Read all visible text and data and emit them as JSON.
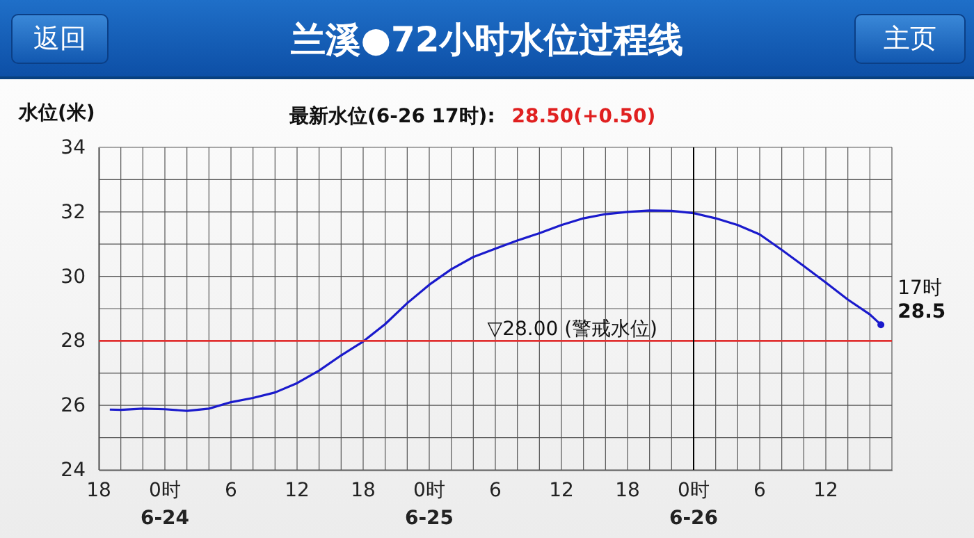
{
  "chart_data": {
    "type": "line",
    "title": "兰溪●72小时水位过程线",
    "subtitle": "最新水位(6-26 17时):",
    "ylabel": "水位(米)",
    "x": [
      "--06-23T19:00",
      "--06-23T20:00",
      "--06-23T22:00",
      "--06-24T00:00",
      "--06-24T02:00",
      "--06-24T04:00",
      "--06-24T06:00",
      "--06-24T08:00",
      "--06-24T10:00",
      "--06-24T12:00",
      "--06-24T14:00",
      "--06-24T16:00",
      "--06-24T18:00",
      "--06-24T20:00",
      "--06-24T22:00",
      "--06-25T00:00",
      "--06-25T02:00",
      "--06-25T04:00",
      "--06-25T06:00",
      "--06-25T08:00",
      "--06-25T10:00",
      "--06-25T12:00",
      "--06-25T14:00",
      "--06-25T16:00",
      "--06-25T18:00",
      "--06-25T20:00",
      "--06-25T22:00",
      "--06-26T00:00",
      "--06-26T02:00",
      "--06-26T04:00",
      "--06-26T06:00",
      "--06-26T08:00",
      "--06-26T10:00",
      "--06-26T12:00",
      "--06-26T14:00",
      "--06-26T16:00",
      "--06-26T17:00"
    ],
    "series": [
      {
        "color": "#1a1acc",
        "values": [
          25.87,
          25.86,
          25.9,
          25.88,
          25.83,
          25.9,
          26.1,
          26.23,
          26.4,
          26.69,
          27.08,
          27.55,
          27.98,
          28.52,
          29.17,
          29.74,
          30.22,
          30.6,
          30.86,
          31.11,
          31.34,
          31.59,
          31.8,
          31.93,
          32.0,
          32.04,
          32.03,
          31.96,
          31.8,
          31.59,
          31.3,
          30.82,
          30.32,
          29.81,
          29.28,
          28.82,
          28.5
        ]
      }
    ],
    "xlim": [
      "--06-23T18:00",
      "--06-26T18:00"
    ],
    "xticks": [
      {
        "value": "--06-23T18:00",
        "label": "18"
      },
      {
        "value": "--06-23T20:00",
        "label": null
      },
      {
        "value": "--06-23T22:00",
        "label": null
      },
      {
        "value": "--06-24T00:00",
        "label": "0时\n6-24"
      },
      {
        "value": "--06-24T02:00",
        "label": null
      },
      {
        "value": "--06-24T04:00",
        "label": null
      },
      {
        "value": "--06-24T06:00",
        "label": "6"
      },
      {
        "value": "--06-24T08:00",
        "label": null
      },
      {
        "value": "--06-24T10:00",
        "label": null
      },
      {
        "value": "--06-24T12:00",
        "label": "12"
      },
      {
        "value": "--06-24T14:00",
        "label": null
      },
      {
        "value": "--06-24T16:00",
        "label": null
      },
      {
        "value": "--06-24T18:00",
        "label": "18"
      },
      {
        "value": "--06-24T20:00",
        "label": null
      },
      {
        "value": "--06-24T22:00",
        "label": null
      },
      {
        "value": "--06-25T00:00",
        "label": "0时\n6-25"
      },
      {
        "value": "--06-25T02:00",
        "label": null
      },
      {
        "value": "--06-25T04:00",
        "label": null
      },
      {
        "value": "--06-25T06:00",
        "label": "6"
      },
      {
        "value": "--06-25T08:00",
        "label": null
      },
      {
        "value": "--06-25T10:00",
        "label": null
      },
      {
        "value": "--06-25T12:00",
        "label": "12"
      },
      {
        "value": "--06-25T14:00",
        "label": null
      },
      {
        "value": "--06-25T16:00",
        "label": null
      },
      {
        "value": "--06-25T18:00",
        "label": "18"
      },
      {
        "value": "--06-25T20:00",
        "label": null
      },
      {
        "value": "--06-25T22:00",
        "label": null
      },
      {
        "value": "--06-26T00:00",
        "label": "0时\n6-26"
      },
      {
        "value": "--06-26T02:00",
        "label": null
      },
      {
        "value": "--06-26T04:00",
        "label": null
      },
      {
        "value": "--06-26T06:00",
        "label": "6"
      },
      {
        "value": "--06-26T08:00",
        "label": null
      },
      {
        "value": "--06-26T10:00",
        "label": null
      },
      {
        "value": "--06-26T12:00",
        "label": "12"
      },
      {
        "value": "--06-26T14:00",
        "label": null
      },
      {
        "value": "--06-26T16:00",
        "label": null
      },
      {
        "value": "--06-26T18:00",
        "label": null
      }
    ],
    "ylim": [
      24,
      34
    ],
    "yticks": [
      24,
      {
        "value": 25,
        "label": null
      },
      26,
      {
        "value": 27,
        "label": null
      },
      28,
      {
        "value": 29,
        "label": null
      },
      30,
      {
        "value": 31,
        "label": null
      },
      32,
      {
        "value": 33,
        "label": null
      },
      34
    ],
    "grid": true,
    "ref_lines": [
      {
        "axis": "y",
        "value": 28,
        "label": "▽28.00 (警戒水位)",
        "color": "#e03030"
      },
      {
        "axis": "x",
        "value": "--06-26T00:00",
        "label": null,
        "color": "#000000"
      }
    ],
    "annotations": [
      "返回",
      "主页",
      "28.50(+0.50)",
      {
        "text": "17时\n28.5",
        "x": "--06-26T17:00",
        "y": 28.5
      }
    ]
  }
}
